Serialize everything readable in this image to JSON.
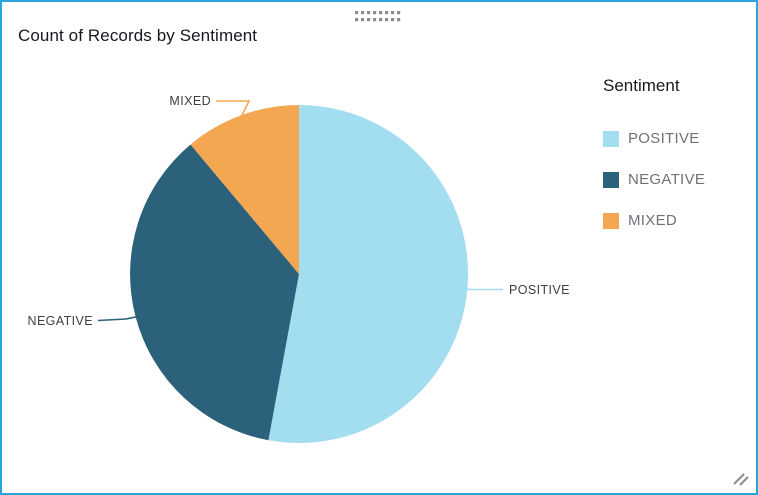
{
  "widget": {
    "title": "Count of Records by Sentiment",
    "border_color": "#29a4dc",
    "background_color": "#ffffff"
  },
  "chart_data": {
    "type": "pie",
    "title": "Count of Records by Sentiment",
    "legend_title": "Sentiment",
    "legend_position": "right",
    "start_angle_deg": 0,
    "direction": "clockwise",
    "slices": [
      {
        "label": "POSITIVE",
        "percent": 52.9,
        "color": "#a3def0"
      },
      {
        "label": "NEGATIVE",
        "percent": 36.0,
        "color": "#2b617a"
      },
      {
        "label": "MIXED",
        "percent": 11.1,
        "color": "#f4a751"
      }
    ],
    "slice_labels_shown": true,
    "label_text_color": "#3f3f3f"
  },
  "icons": {
    "drag_dots_color": "#8d8d8d",
    "resize_grip_color": "#8c8c8c"
  }
}
